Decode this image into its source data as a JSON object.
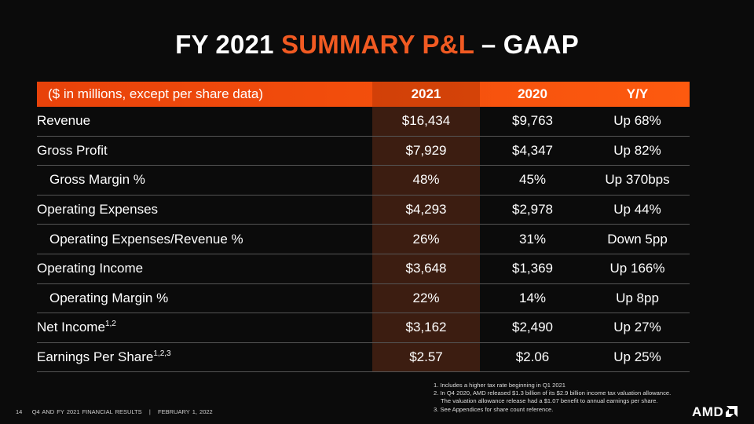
{
  "title": {
    "part1": "FY 2021 ",
    "part2": "SUMMARY P&L",
    "part3": " – GAAP"
  },
  "table": {
    "header": [
      "($ in millions, except per share data)",
      "2021",
      "2020",
      "Y/Y"
    ],
    "rows": [
      {
        "label": "Revenue",
        "sup": "",
        "indent": false,
        "v2021": "$16,434",
        "v2020": "$9,763",
        "yy": "Up 68%"
      },
      {
        "label": "Gross Profit",
        "sup": "",
        "indent": false,
        "v2021": "$7,929",
        "v2020": "$4,347",
        "yy": "Up 82%"
      },
      {
        "label": "Gross Margin %",
        "sup": "",
        "indent": true,
        "v2021": "48%",
        "v2020": "45%",
        "yy": "Up 370bps"
      },
      {
        "label": "Operating Expenses",
        "sup": "",
        "indent": false,
        "v2021": "$4,293",
        "v2020": "$2,978",
        "yy": "Up 44%"
      },
      {
        "label": "Operating Expenses/Revenue %",
        "sup": "",
        "indent": true,
        "v2021": "26%",
        "v2020": "31%",
        "yy": "Down 5pp"
      },
      {
        "label": "Operating Income",
        "sup": "",
        "indent": false,
        "v2021": "$3,648",
        "v2020": "$1,369",
        "yy": "Up 166%"
      },
      {
        "label": "Operating Margin %",
        "sup": "",
        "indent": true,
        "v2021": "22%",
        "v2020": "14%",
        "yy": "Up 8pp"
      },
      {
        "label": "Net Income",
        "sup": "1,2",
        "indent": false,
        "v2021": "$3,162",
        "v2020": "$2,490",
        "yy": "Up 27%"
      },
      {
        "label": "Earnings Per Share",
        "sup": "1,2,3",
        "indent": false,
        "v2021": "$2.57",
        "v2020": "$2.06",
        "yy": "Up 25%"
      }
    ]
  },
  "footnotes": [
    "1. Includes a higher tax rate beginning in Q1 2021",
    "2. In Q4 2020, AMD released $1.3 billion of its $2.9 billion income tax valuation allowance.",
    "The valuation allowance release had a $1.07 benefit to annual earnings per share.",
    "3. See Appendices for share count reference."
  ],
  "footer": {
    "page": "14",
    "text": "Q4 AND FY 2021 FINANCIAL RESULTS   |   FEBRUARY 1, 2022"
  },
  "logo": "AMD",
  "colors": {
    "accent": "#f15a22",
    "header": "#fd5a0f"
  }
}
